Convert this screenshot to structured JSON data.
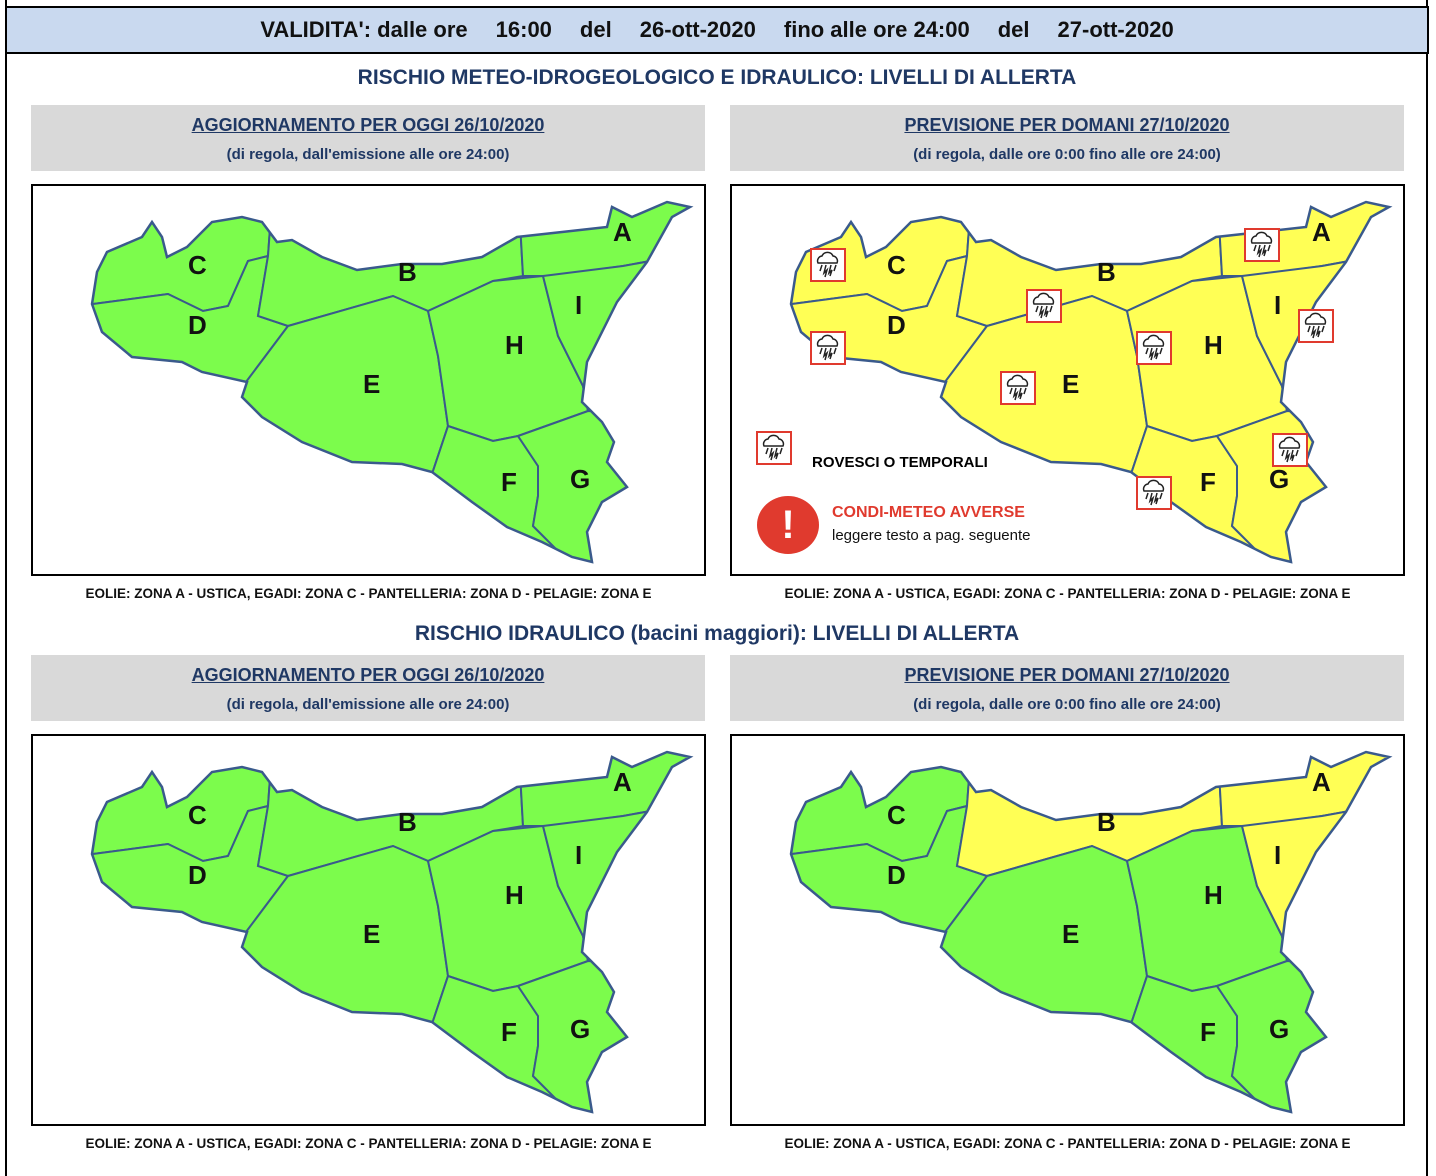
{
  "validity": {
    "label": "VALIDITA': dalle ore",
    "from_time": "16:00",
    "del1": "del",
    "from_date": "26-ott-2020",
    "until_label": "fino alle ore 24:00",
    "del2": "del",
    "to_date": "27-ott-2020"
  },
  "sections": [
    {
      "title": "RISCHIO METEO-IDROGEOLOGICO E IDRAULICO: LIVELLI DI ALLERTA",
      "panels": [
        {
          "title": "AGGIORNAMENTO PER OGGI 26/10/2020",
          "subtitle": "(di regola, dall'emissione alle ore 24:00)",
          "note": "EOLIE: ZONA A - USTICA, EGADI: ZONA C - PANTELLERIA: ZONA D - PELAGIE: ZONA E",
          "zones": {
            "A": "#7cfc4c",
            "B": "#7cfc4c",
            "C": "#7cfc4c",
            "D": "#7cfc4c",
            "E": "#7cfc4c",
            "F": "#7cfc4c",
            "G": "#7cfc4c",
            "H": "#7cfc4c",
            "I": "#7cfc4c"
          },
          "storm_icon_zones": []
        },
        {
          "title": "PREVISIONE PER DOMANI 27/10/2020",
          "subtitle": "(di regola, dalle ore 0:00 fino alle ore 24:00)",
          "note": "EOLIE: ZONA A - USTICA, EGADI: ZONA C - PANTELLERIA: ZONA D - PELAGIE: ZONA E",
          "zones": {
            "A": "#ffff55",
            "B": "#ffff55",
            "C": "#ffff55",
            "D": "#ffff55",
            "E": "#ffff55",
            "F": "#ffff55",
            "G": "#ffff55",
            "H": "#ffff55",
            "I": "#ffff55"
          },
          "storm_icon_zones": [
            "A",
            "B",
            "C",
            "D",
            "E",
            "F",
            "G",
            "H",
            "I"
          ],
          "legend": {
            "storm_icon": "thunderstorm-icon",
            "storm_label": "ROVESCI O TEMPORALI",
            "alert_icon": "exclamation-icon",
            "alert_title": "CONDI-METEO AVVERSE",
            "alert_sub": "leggere testo a pag. seguente"
          }
        }
      ]
    },
    {
      "title": "RISCHIO IDRAULICO (bacini maggiori): LIVELLI DI ALLERTA",
      "panels": [
        {
          "title": "AGGIORNAMENTO PER OGGI 26/10/2020",
          "subtitle": "(di regola, dall'emissione alle ore 24:00)",
          "note": "EOLIE: ZONA A - USTICA, EGADI: ZONA C - PANTELLERIA: ZONA D - PELAGIE: ZONA E",
          "zones": {
            "A": "#7cfc4c",
            "B": "#7cfc4c",
            "C": "#7cfc4c",
            "D": "#7cfc4c",
            "E": "#7cfc4c",
            "F": "#7cfc4c",
            "G": "#7cfc4c",
            "H": "#7cfc4c",
            "I": "#7cfc4c"
          },
          "storm_icon_zones": []
        },
        {
          "title": "PREVISIONE PER DOMANI 27/10/2020",
          "subtitle": "(di regola, dalle ore 0:00 fino alle ore 24:00)",
          "note": "EOLIE: ZONA A - USTICA, EGADI: ZONA C - PANTELLERIA: ZONA D - PELAGIE: ZONA E",
          "zones": {
            "A": "#ffff55",
            "B": "#ffff55",
            "C": "#7cfc4c",
            "D": "#7cfc4c",
            "E": "#7cfc4c",
            "F": "#7cfc4c",
            "G": "#7cfc4c",
            "H": "#7cfc4c",
            "I": "#ffff55"
          },
          "storm_icon_zones": []
        }
      ]
    }
  ]
}
